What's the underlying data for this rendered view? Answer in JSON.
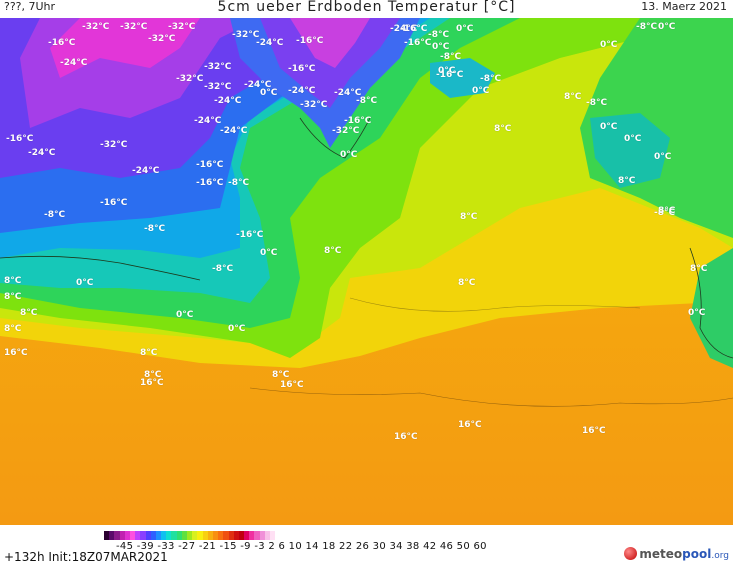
{
  "header": {
    "left": "???, 7Uhr",
    "title": "5cm ueber Erdboden Temperatur [°C]",
    "date": "13. Maerz 2021"
  },
  "map": {
    "labels": [
      "-32°C",
      "-32°C",
      "-32°C",
      "-32°C",
      "-32°C",
      "-32°C",
      "-32°C",
      "-32°C",
      "-32°C",
      "-32°C",
      "-32°C",
      "-24°C",
      "-24°C",
      "-24°C",
      "-24°C",
      "-24°C",
      "-24°C",
      "-24°C",
      "-24°C",
      "-24°C",
      "-24°C",
      "-24°C",
      "-16°C",
      "-16°C",
      "-16°C",
      "-16°C",
      "-16°C",
      "-16°C",
      "-16°C",
      "-16°C",
      "-16°C",
      "-16°C",
      "-16°C",
      "-16°C",
      "-8°C",
      "-8°C",
      "-8°C",
      "-8°C",
      "-8°C",
      "-8°C",
      "-8°C",
      "-8°C",
      "-8°C",
      "-8°C",
      "-8°C",
      "0°C",
      "0°C",
      "0°C",
      "0°C",
      "0°C",
      "0°C",
      "0°C",
      "0°C",
      "0°C",
      "0°C",
      "0°C",
      "0°C",
      "0°C",
      "0°C",
      "0°C",
      "0°C",
      "8°C",
      "8°C",
      "8°C",
      "8°C",
      "8°C",
      "8°C",
      "8°C",
      "8°C",
      "8°C",
      "8°C",
      "8°C",
      "8°C",
      "8°C",
      "8°C",
      "8°C",
      "16°C",
      "16°C",
      "16°C",
      "16°C",
      "16°C",
      "16°C"
    ]
  },
  "legend": {
    "ticks": "-45 -39 -33 -27 -21 -15  -9  -3   2   6  10  14  18  22  26  30  34  38  42  46  50  60",
    "colors": [
      "#2a0030",
      "#5a0a6a",
      "#8a1a8a",
      "#c020b0",
      "#e030d0",
      "#ff50e0",
      "#c040ff",
      "#8a40ff",
      "#5040ff",
      "#3060ff",
      "#2090ff",
      "#10c0f0",
      "#10e0d0",
      "#20e0a0",
      "#30e070",
      "#60e040",
      "#a0e820",
      "#d8f020",
      "#f8f010",
      "#f8d010",
      "#f8b010",
      "#f89010",
      "#f87010",
      "#f05010",
      "#e03010",
      "#d01010",
      "#c00010",
      "#e00060",
      "#f030a0",
      "#f060c0",
      "#f090d8",
      "#f8c0e8",
      "#ffe0f4"
    ],
    "init": "+132h Init:18Z07MAR2021"
  },
  "logo": {
    "meteo": "meteo",
    "pool": "pool",
    "org": ".org"
  }
}
